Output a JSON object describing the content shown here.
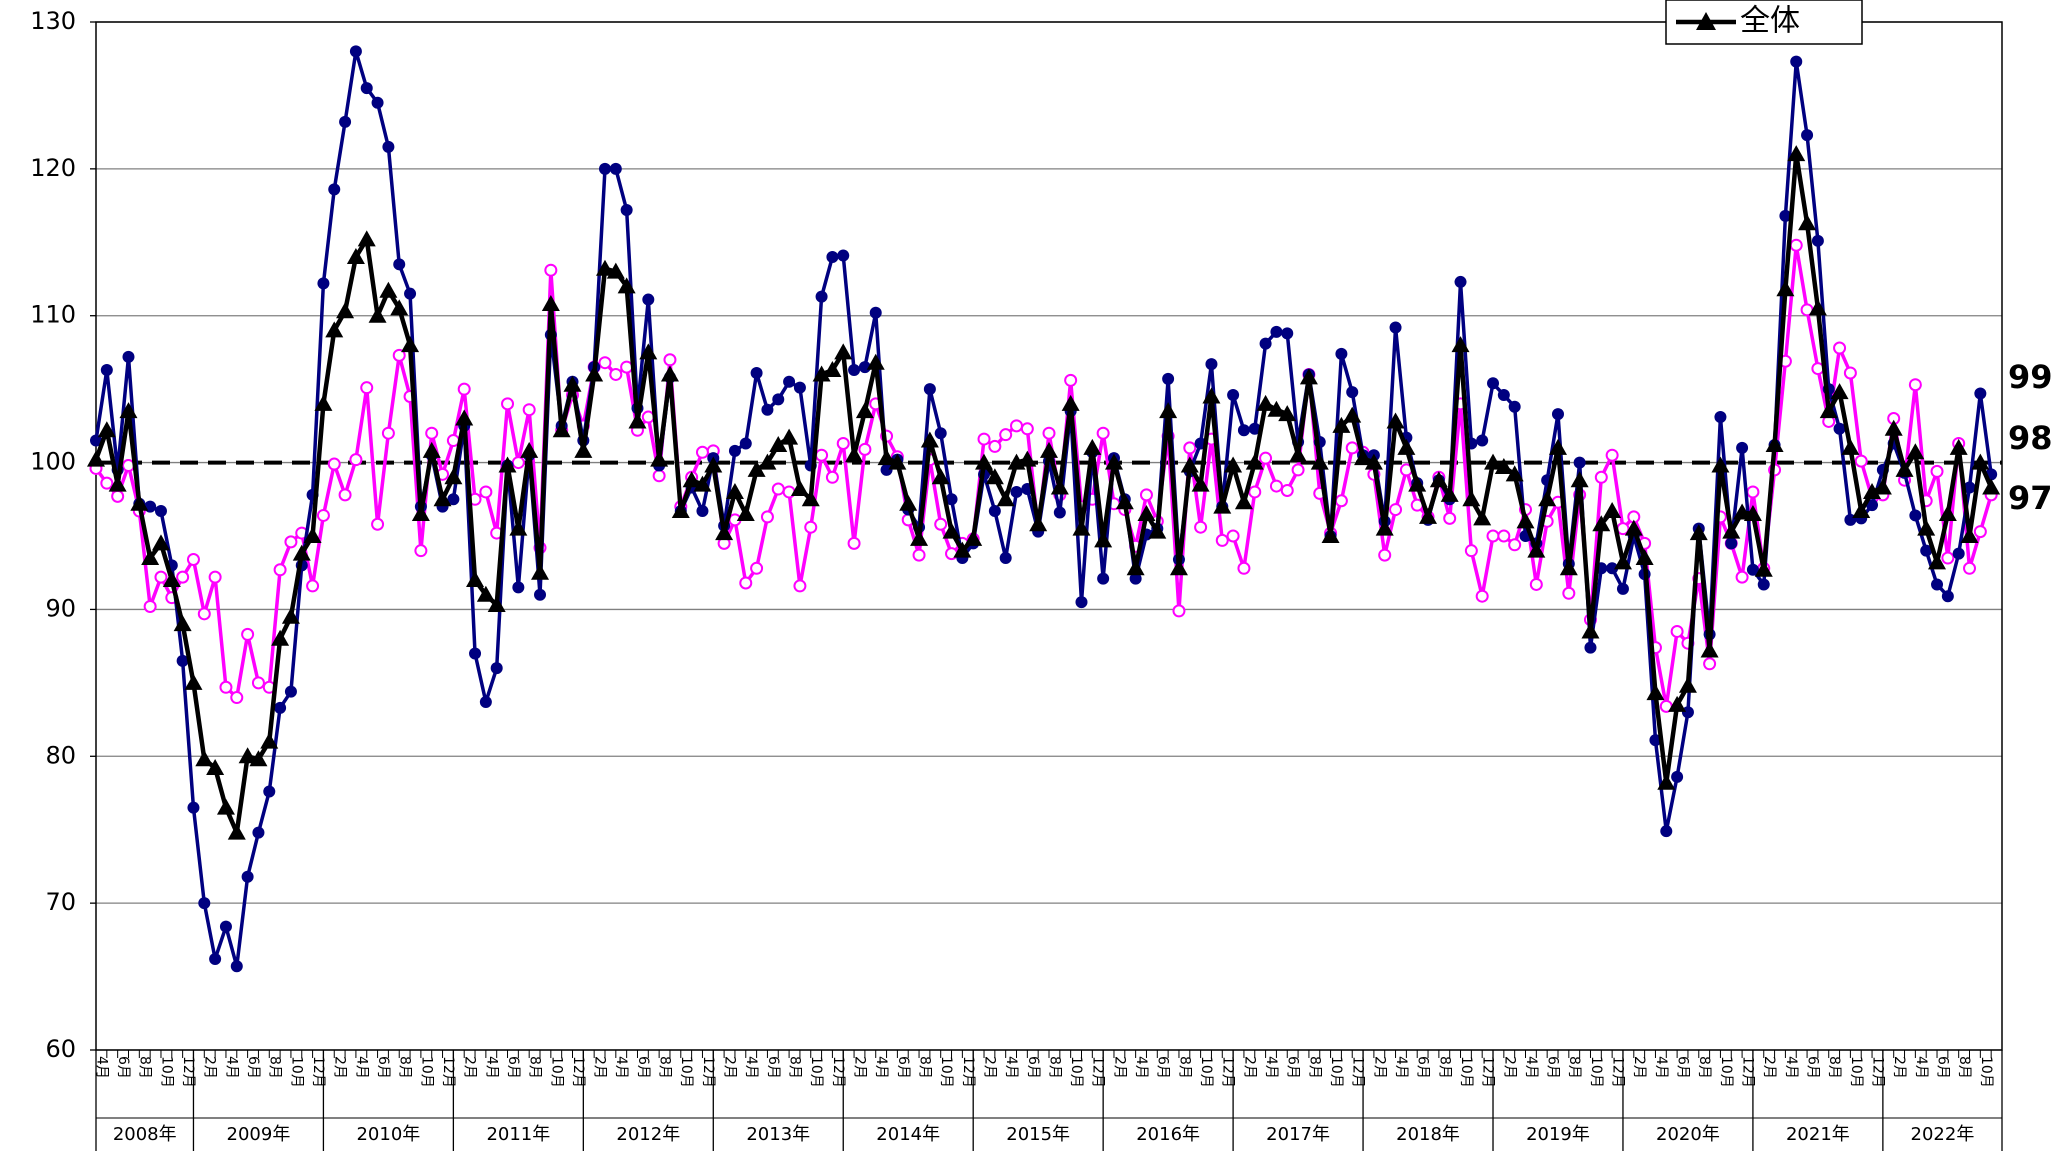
{
  "chart_data": {
    "type": "line",
    "categories": [
      "4月",
      null,
      "6月",
      null,
      "8月",
      null,
      "10月",
      null,
      "12月",
      null,
      "2月",
      null,
      "4月",
      null,
      "6月",
      null,
      "8月",
      null,
      "10月",
      null,
      "12月",
      null,
      "2月",
      null,
      "4月",
      null,
      "6月",
      null,
      "8月",
      null,
      "10月",
      null,
      "12月",
      null,
      "2月",
      null,
      "4月",
      null,
      "6月",
      null,
      "8月",
      null,
      "10月",
      null,
      "12月",
      null,
      "2月",
      null,
      "4月",
      null,
      "6月",
      null,
      "8月",
      null,
      "10月",
      null,
      "12月",
      null,
      "2月",
      null,
      "4月",
      null,
      "6月",
      null,
      "8月",
      null,
      "10月",
      null,
      "12月",
      null,
      "2月",
      null,
      "4月",
      null,
      "6月",
      null,
      "8月",
      null,
      "10月",
      null,
      "12月",
      null,
      "2月",
      null,
      "4月",
      null,
      "6月",
      null,
      "8月",
      null,
      "10月",
      null,
      "12月",
      null,
      "2月",
      null,
      "4月",
      null,
      "6月",
      null,
      "8月",
      null,
      "10月",
      null,
      "12月",
      null,
      "2月",
      null,
      "4月",
      null,
      "6月",
      null,
      "8月",
      null,
      "10月",
      null,
      "12月",
      null,
      "2月",
      null,
      "4月",
      null,
      "6月",
      null,
      "8月",
      null,
      "10月",
      null,
      "12月",
      null,
      "2月",
      null,
      "4月",
      null,
      "6月",
      null,
      "8月",
      null,
      "10月",
      null,
      "12月",
      null,
      "2月",
      null,
      "4月",
      null,
      "6月",
      null,
      "8月",
      null,
      "10月",
      null,
      "12月",
      null,
      "2月",
      null,
      "4月",
      null,
      "6月",
      null,
      "8月",
      null,
      "10月",
      null,
      "12月",
      null,
      "2月",
      null,
      "4月",
      null,
      "6月",
      null,
      "8月",
      null,
      "10月",
      null
    ],
    "year_labels": [
      "2008年",
      "2009年",
      "2010年",
      "2011年",
      "2012年",
      "2013年",
      "2014年",
      "2015年",
      "2016年",
      "2017年",
      "2018年",
      "2019年",
      "2020年",
      "2021年",
      "2022年"
    ],
    "ylim": [
      60,
      130
    ],
    "yticks": [
      60,
      70,
      80,
      90,
      100,
      110,
      120,
      130
    ],
    "grid": true,
    "reference_line": 100,
    "legend": "top-right",
    "series": [
      {
        "color": "#ff00ff",
        "marker": "hollow-circle",
        "end_label": 97,
        "values": [
          99.6,
          98.6,
          97.7,
          99.8,
          96.7,
          90.2,
          92.2,
          90.8,
          92.2,
          93.4,
          89.7,
          92.2,
          84.7,
          84,
          88.3,
          85,
          84.7,
          92.7,
          94.6,
          95.2,
          91.6,
          96.4,
          99.9,
          97.8,
          100.2,
          105.1,
          95.8,
          102,
          107.3,
          104.5,
          94,
          102,
          99.2,
          101.5,
          105,
          97.5,
          98,
          95.2,
          104,
          100,
          103.6,
          94.2,
          113.1,
          102.2,
          104.6,
          102.5,
          106.5,
          106.8,
          106,
          106.5,
          102.2,
          103.1,
          99.1,
          107,
          97,
          99,
          100.7,
          100.8,
          94.5,
          96.1,
          91.8,
          92.8,
          96.3,
          98.2,
          98,
          91.6,
          95.6,
          100.5,
          99,
          101.3,
          94.5,
          100.9,
          104,
          101.8,
          100.4,
          96.1,
          93.7,
          100.2,
          95.8,
          93.8,
          94.5,
          94.8,
          101.6,
          101.1,
          101.9,
          102.5,
          102.3,
          95.5,
          102,
          97.8,
          105.6,
          97,
          97.5,
          102,
          97.2,
          96.8,
          94.3,
          97.8,
          96,
          101.8,
          89.9,
          101,
          95.6,
          101.6,
          94.7,
          95,
          92.8,
          98,
          100.3,
          98.4,
          98.1,
          99.5,
          106,
          97.9,
          95.2,
          97.4,
          101,
          100.7,
          99.2,
          93.7,
          96.8,
          99.5,
          97.1,
          96.3,
          99,
          96.2,
          104,
          94,
          90.9,
          95,
          95,
          94.4,
          96.8,
          91.7,
          96,
          97.3,
          91.1,
          97.8,
          89.3,
          99,
          100.5,
          95.5,
          96.3,
          94.5,
          87.4,
          83.4,
          88.5,
          87.7,
          92.1,
          86.3,
          96.3,
          94.5,
          92.2,
          98,
          92.8,
          99.5,
          106.9,
          114.8,
          110.4,
          106.4,
          102.8,
          107.8,
          106.1,
          100.1,
          97.6,
          97.8,
          103,
          98.8,
          105.3,
          97.4,
          99.4,
          93.5,
          101.3,
          92.8,
          95.3,
          97.8
        ]
      },
      {
        "color": "#000080",
        "marker": "circle",
        "end_label": 99,
        "end_label_color": "#0000ff",
        "values": [
          101.5,
          106.3,
          99.5,
          107.2,
          97.2,
          97,
          96.7,
          93,
          86.5,
          76.5,
          70,
          66.2,
          68.4,
          65.7,
          71.8,
          74.8,
          77.6,
          83.3,
          84.4,
          93,
          97.8,
          112.2,
          118.6,
          123.2,
          128,
          125.5,
          124.5,
          121.5,
          113.5,
          111.5,
          97,
          100.5,
          97,
          97.5,
          102.5,
          87,
          83.7,
          86,
          99.8,
          91.5,
          100.5,
          91,
          108.7,
          102.5,
          105.5,
          101.5,
          106.5,
          120,
          120,
          117.2,
          103.7,
          111.1,
          99.8,
          105.8,
          96.7,
          98.3,
          96.7,
          100.3,
          95.7,
          100.8,
          101.3,
          106.1,
          103.6,
          104.3,
          105.5,
          105.1,
          99.8,
          111.3,
          114,
          114.1,
          106.3,
          106.5,
          110.2,
          99.5,
          100.2,
          96.8,
          95.6,
          105,
          102,
          97.5,
          93.5,
          94.5,
          99.2,
          96.7,
          93.5,
          98,
          98.2,
          95.3,
          100.1,
          96.6,
          103.5,
          90.5,
          100.7,
          92.1,
          100.3,
          97.5,
          92.1,
          95.1,
          95.5,
          105.7,
          93.4,
          99.4,
          101.3,
          106.7,
          97,
          104.6,
          102.2,
          102.3,
          108.1,
          108.9,
          108.8,
          101.4,
          106,
          101.4,
          95,
          107.4,
          104.8,
          100.5,
          100.5,
          96,
          109.2,
          101.7,
          98.6,
          96.1,
          98.8,
          97.5,
          112.3,
          101.3,
          101.5,
          105.4,
          104.6,
          103.8,
          95,
          94.5,
          98.8,
          103.3,
          93.1,
          100,
          87.4,
          92.8,
          92.8,
          91.4,
          95,
          92.4,
          81.1,
          74.9,
          78.6,
          83,
          95.5,
          88.3,
          103.1,
          94.5,
          101,
          92.7,
          91.7,
          101.2,
          116.8,
          127.3,
          122.3,
          115.1,
          105,
          102.3,
          96.1,
          96.2,
          97.1,
          99.5,
          101.3,
          99.3,
          96.4,
          94,
          91.7,
          90.9,
          93.8,
          98.3,
          104.7,
          99.2
        ]
      },
      {
        "name": "全体",
        "color": "#000000",
        "marker": "triangle",
        "end_label": 98,
        "values": [
          100.2,
          102.2,
          98.5,
          103.5,
          97.2,
          93.5,
          94.5,
          92,
          89,
          85,
          79.8,
          79.2,
          76.5,
          74.8,
          80,
          79.8,
          81,
          88,
          89.5,
          93.8,
          95,
          104,
          109,
          110.3,
          114,
          115.2,
          110,
          111.7,
          110.5,
          108,
          96.5,
          100.8,
          97.5,
          99,
          103,
          92,
          91,
          90.3,
          99.8,
          95.5,
          100.8,
          92.5,
          110.8,
          102.2,
          105.3,
          100.8,
          106,
          113.2,
          113,
          112,
          102.8,
          107.5,
          100.2,
          106,
          96.7,
          98.8,
          98.5,
          99.8,
          95.2,
          98,
          96.5,
          99.5,
          100,
          101.2,
          101.7,
          98.2,
          97.5,
          106,
          106.3,
          107.5,
          100.5,
          103.5,
          106.8,
          100.3,
          100,
          97.2,
          94.8,
          101.5,
          99,
          95.3,
          94,
          94.8,
          100,
          99,
          97.5,
          100,
          100.2,
          95.8,
          100.8,
          98.3,
          104,
          95.5,
          101,
          94.7,
          100,
          97.3,
          92.8,
          96.5,
          95.3,
          103.5,
          92.8,
          99.8,
          98.5,
          104.5,
          97,
          99.8,
          97.3,
          100,
          104,
          103.6,
          103.3,
          100.5,
          105.8,
          100,
          95,
          102.5,
          103.2,
          100.3,
          100,
          95.5,
          102.8,
          101,
          98.5,
          96.3,
          98.8,
          97.8,
          108,
          97.5,
          96.2,
          100,
          99.7,
          99.2,
          96,
          94,
          97.5,
          101,
          92.8,
          98.8,
          88.5,
          95.8,
          96.7,
          93.2,
          95.5,
          93.5,
          84.3,
          78.2,
          83.5,
          84.8,
          95.2,
          87.2,
          99.8,
          95.3,
          96.6,
          96.5,
          92.7,
          101.2,
          111.8,
          121,
          116.3,
          110.5,
          103.5,
          104.8,
          101,
          96.7,
          98,
          98.3,
          102.3,
          99.5,
          100.7,
          95.5,
          93.2,
          96.5,
          101,
          95,
          100,
          98.3
        ]
      }
    ]
  }
}
